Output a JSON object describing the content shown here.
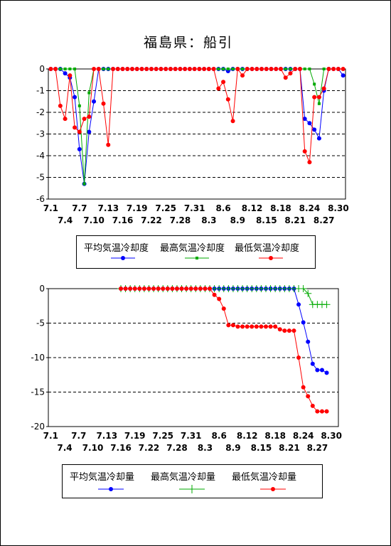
{
  "title": "福島県：船引",
  "chart_data": [
    {
      "type": "line",
      "ylim": [
        -6,
        0
      ],
      "yticks": [
        0,
        -1,
        -2,
        -3,
        -4,
        -5,
        -6
      ],
      "xticks_row1": [
        "7.1",
        "7.7",
        "7.13",
        "7.19",
        "7.25",
        "7.31",
        "8.6",
        "8.12",
        "8.18",
        "8.24",
        "8.30"
      ],
      "xticks_row2": [
        "7.4",
        "7.10",
        "7.16",
        "7.22",
        "7.28",
        "8.3",
        "8.9",
        "8.15",
        "8.21",
        "8.27"
      ],
      "n_days": 62,
      "grid": "horizontal dashed",
      "legend_position": "below",
      "series": [
        {
          "name": "平均気温冷却度",
          "color": "#0000ff",
          "marker": "dot",
          "values": [
            0,
            0,
            0,
            -0.2,
            -0.4,
            -1.3,
            -3.7,
            -5.3,
            -2.9,
            -1.5,
            0,
            0,
            0,
            0,
            0,
            0,
            0,
            0,
            0,
            0,
            0,
            0,
            0,
            0,
            0,
            0,
            0,
            0,
            0,
            0,
            0,
            0,
            0,
            0,
            0,
            0,
            0,
            -0.1,
            0,
            0,
            0,
            0,
            0,
            0,
            0,
            0,
            0,
            0,
            0,
            0,
            0,
            0,
            0,
            -2.3,
            -2.5,
            -2.8,
            -3.2,
            -1,
            0,
            0,
            0,
            -0.3
          ]
        },
        {
          "name": "最高気温冷却度",
          "color": "#00aa00",
          "marker": "small-square",
          "values": [
            0,
            0,
            0,
            0,
            0,
            0,
            -1.7,
            -5.3,
            -1.1,
            0,
            0,
            0,
            0,
            0,
            0,
            0,
            0,
            0,
            0,
            0,
            0,
            0,
            0,
            0,
            0,
            0,
            0,
            0,
            0,
            0,
            0,
            0,
            0,
            0,
            0,
            0,
            0,
            0,
            0,
            0,
            0,
            0,
            0,
            0,
            0,
            0,
            0,
            0,
            0,
            0,
            0,
            0,
            0,
            0,
            0,
            -0.7,
            -1.6,
            0,
            0,
            0,
            0,
            0
          ]
        },
        {
          "name": "最低気温冷却度",
          "color": "#ff0000",
          "marker": "dot",
          "values": [
            0,
            0,
            -1.7,
            -2.3,
            -0.3,
            -2.7,
            -2.9,
            -2.3,
            -2.2,
            0,
            0,
            -1.6,
            -3.5,
            0,
            0,
            0,
            0,
            0,
            0,
            0,
            0,
            0,
            0,
            0,
            0,
            0,
            0,
            0,
            0,
            0,
            0,
            0,
            0,
            0,
            0,
            -0.9,
            -0.6,
            -1.4,
            -2.4,
            0,
            -0.3,
            0,
            0,
            0,
            0,
            0,
            0,
            0,
            0,
            -0.4,
            -0.2,
            0,
            0,
            -3.8,
            -4.3,
            -1.3,
            -1.3,
            -0.9,
            0,
            0,
            0,
            0
          ]
        }
      ]
    },
    {
      "type": "line",
      "ylim": [
        -20,
        0
      ],
      "yticks": [
        0,
        -5,
        -10,
        -15,
        -20
      ],
      "xticks_row1": [
        "7.1",
        "7.7",
        "7.13",
        "7.19",
        "7.25",
        "7.31",
        "8.6",
        "8.12",
        "8.18",
        "8.24",
        "8.30"
      ],
      "xticks_row2": [
        "7.4",
        "7.10",
        "7.16",
        "7.22",
        "7.28",
        "8.3",
        "8.9",
        "8.15",
        "8.21",
        "8.27"
      ],
      "n_days": 62,
      "grid": "horizontal dashed",
      "legend_position": "below",
      "start_index": 15,
      "series": [
        {
          "name": "平均気温冷却量",
          "color": "#0000ff",
          "marker": "dot",
          "values": [
            0,
            0,
            0,
            0,
            0,
            0,
            0,
            0,
            0,
            0,
            0,
            0,
            0,
            0,
            0,
            0,
            0,
            0,
            0,
            0,
            0,
            0,
            0,
            0,
            0,
            0,
            0,
            0,
            0,
            0,
            0,
            0,
            0,
            0,
            0,
            0,
            0,
            0,
            -2.3,
            -4.9,
            -7.7,
            -10.9,
            -11.8,
            -11.8,
            -12.2
          ]
        },
        {
          "name": "最高気温冷却量",
          "color": "#00aa00",
          "marker": "plus",
          "values": [
            0,
            0,
            0,
            0,
            0,
            0,
            0,
            0,
            0,
            0,
            0,
            0,
            0,
            0,
            0,
            0,
            0,
            0,
            0,
            0,
            0,
            0,
            0,
            0,
            0,
            0,
            0,
            0,
            0,
            0,
            0,
            0,
            0,
            0,
            0,
            0,
            0,
            0,
            0,
            0,
            -0.7,
            -2.3,
            -2.3,
            -2.3,
            -2.3
          ]
        },
        {
          "name": "最低気温冷却量",
          "color": "#ff0000",
          "marker": "dot",
          "values": [
            0,
            0,
            0,
            0,
            0,
            0,
            0,
            0,
            0,
            0,
            0,
            0,
            0,
            0,
            0,
            0,
            0,
            0,
            0,
            0,
            -0.9,
            -1.5,
            -2.9,
            -5.3,
            -5.3,
            -5.5,
            -5.5,
            -5.5,
            -5.5,
            -5.5,
            -5.5,
            -5.5,
            -5.5,
            -5.5,
            -5.9,
            -6.1,
            -6.1,
            -6.1,
            -10,
            -14.3,
            -15.6,
            -17,
            -17.8,
            -17.8,
            -17.8
          ]
        }
      ]
    }
  ]
}
